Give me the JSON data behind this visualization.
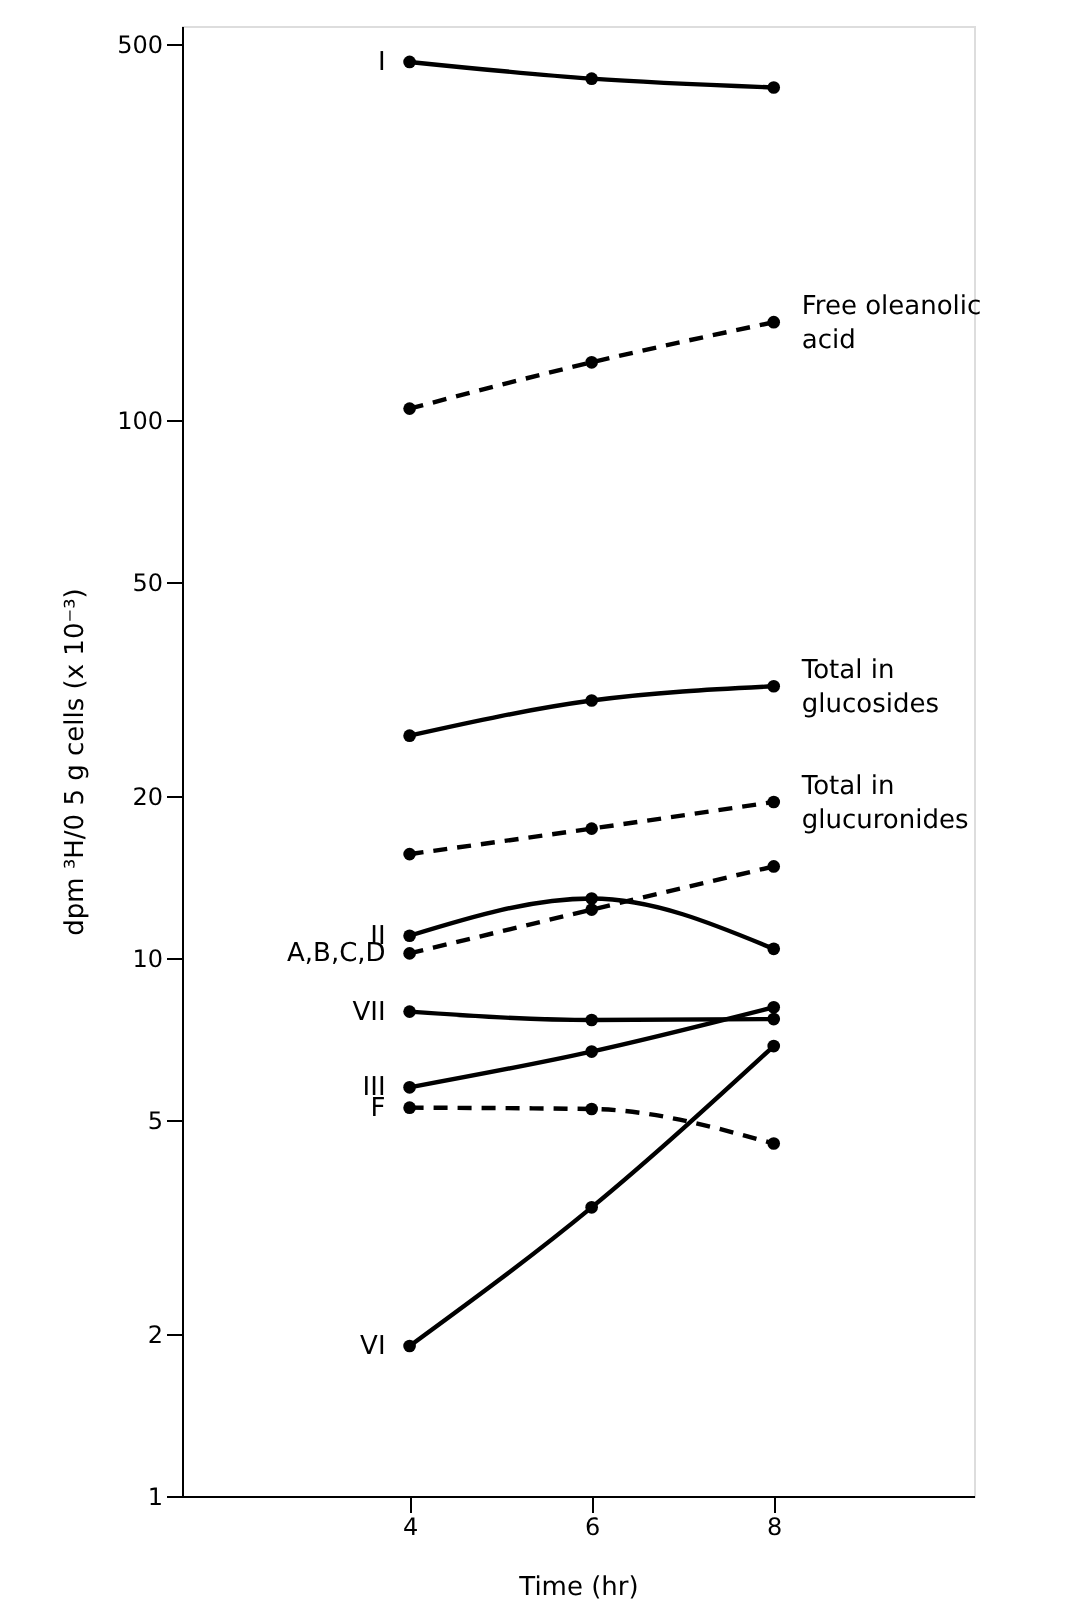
{
  "chart_data": {
    "type": "line",
    "xlabel": "Time (hr)",
    "ylabel": "dpm ³H/0 5 g cells (x 10⁻³)",
    "x": [
      4,
      6,
      8
    ],
    "xlim": [
      1.5,
      10.2
    ],
    "xticks": [
      4,
      6,
      8
    ],
    "ylim": [
      1,
      540
    ],
    "yticks": [
      1,
      2,
      5,
      10,
      20,
      50,
      100,
      500
    ],
    "log": "y",
    "grid": false,
    "marker": "circle",
    "series": [
      {
        "name": "I",
        "color": "#000000",
        "line_style": "solid",
        "values": [
          463,
          431,
          415
        ]
      },
      {
        "name": "Free oleanolic acid",
        "color": "#000000",
        "line_style": "dashed",
        "values": [
          105,
          128,
          152
        ]
      },
      {
        "name": "Total in glucosides",
        "color": "#000000",
        "line_style": "solid",
        "values": [
          25.9,
          30.1,
          32.0
        ]
      },
      {
        "name": "Total in glucuronides",
        "color": "#000000",
        "line_style": "dashed",
        "values": [
          15.6,
          17.4,
          19.5
        ]
      },
      {
        "name": "II",
        "color": "#000000",
        "line_style": "solid",
        "values": [
          11.0,
          12.9,
          10.4
        ]
      },
      {
        "name": "A,B,C,D",
        "color": "#000000",
        "line_style": "dashed",
        "values": [
          10.2,
          12.3,
          14.8
        ]
      },
      {
        "name": "VII",
        "color": "#000000",
        "line_style": "solid",
        "values": [
          7.95,
          7.67,
          7.7
        ]
      },
      {
        "name": "III",
        "color": "#000000",
        "line_style": "solid",
        "values": [
          5.75,
          6.7,
          8.1
        ]
      },
      {
        "name": "F",
        "color": "#000000",
        "line_style": "dashed",
        "values": [
          5.27,
          5.24,
          4.52
        ]
      },
      {
        "name": "VI",
        "color": "#000000",
        "line_style": "solid",
        "values": [
          1.9,
          3.44,
          6.86
        ]
      }
    ]
  }
}
